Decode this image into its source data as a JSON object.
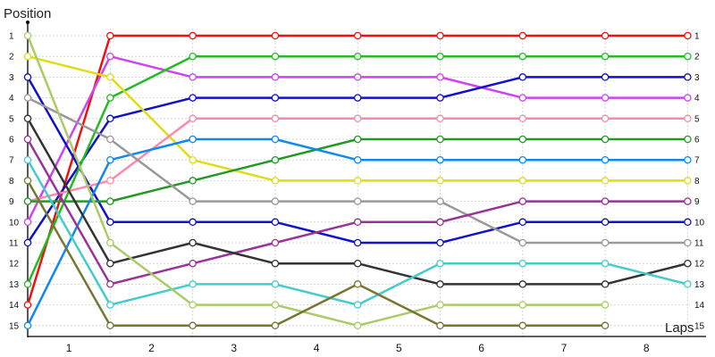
{
  "chart_data": {
    "type": "line",
    "ylabel": "Position",
    "xlabel": "Laps",
    "x_ticks": [
      "1",
      "2",
      "3",
      "4",
      "5",
      "6",
      "7",
      "8"
    ],
    "y_ticks": [
      "1",
      "2",
      "3",
      "4",
      "5",
      "6",
      "7",
      "8",
      "9",
      "10",
      "11",
      "12",
      "13",
      "14",
      "15"
    ],
    "ylim": [
      1,
      15
    ],
    "y_inverted": true,
    "grid": true,
    "point_x": [
      0,
      1,
      2,
      3,
      4,
      5,
      6,
      7,
      8
    ],
    "series": [
      {
        "color": "#ee1111",
        "values": [
          14,
          1,
          1,
          1,
          1,
          1,
          1,
          1,
          1
        ]
      },
      {
        "color": "#cc44ee",
        "values": [
          10,
          2,
          3,
          3,
          3,
          3,
          4,
          4,
          4
        ]
      },
      {
        "color": "#1111cc",
        "values": [
          3,
          10,
          10,
          10,
          11,
          11,
          10,
          10,
          10
        ]
      },
      {
        "color": "#1111cc",
        "values": [
          11,
          5,
          4,
          4,
          4,
          4,
          3,
          3,
          3
        ]
      },
      {
        "color": "#22bb22",
        "values": [
          13,
          4,
          2,
          2,
          2,
          2,
          2,
          2,
          2
        ]
      },
      {
        "color": "#dddd11",
        "values": [
          2,
          3,
          7,
          8,
          8,
          8,
          8,
          8,
          8
        ]
      },
      {
        "color": "#ff88aa",
        "values": [
          9,
          8,
          5,
          5,
          5,
          5,
          5,
          5,
          5
        ]
      },
      {
        "color": "#229922",
        "values": [
          9,
          9,
          8,
          7,
          6,
          6,
          6,
          6,
          6
        ]
      },
      {
        "color": "#1188ee",
        "values": [
          15,
          7,
          6,
          6,
          7,
          7,
          7,
          7,
          7
        ]
      },
      {
        "color": "#999999",
        "values": [
          4,
          6,
          9,
          9,
          9,
          9,
          11,
          11,
          11
        ]
      },
      {
        "color": "#993399",
        "values": [
          6,
          13,
          12,
          11,
          10,
          10,
          9,
          9,
          9
        ]
      },
      {
        "color": "#333333",
        "values": [
          5,
          12,
          11,
          12,
          12,
          13,
          13,
          13,
          12
        ]
      },
      {
        "color": "#44cccc",
        "values": [
          7,
          14,
          13,
          13,
          14,
          12,
          12,
          12,
          13
        ]
      },
      {
        "color": "#aacc66",
        "values": [
          1,
          11,
          14,
          14,
          15,
          14,
          14,
          14,
          null
        ]
      },
      {
        "color": "#777733",
        "values": [
          8,
          15,
          15,
          15,
          13,
          15,
          15,
          15,
          null
        ]
      }
    ]
  }
}
